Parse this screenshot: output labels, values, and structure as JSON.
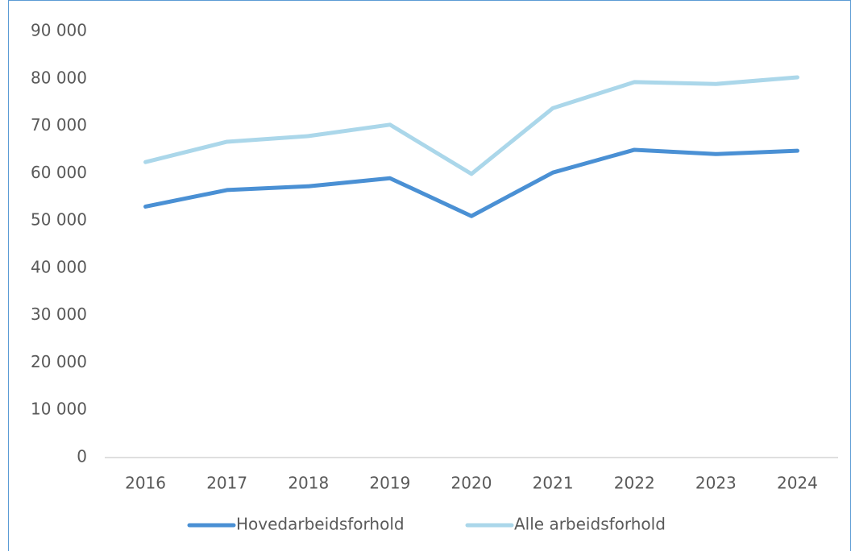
{
  "chart_data": {
    "type": "line",
    "categories": [
      "2016",
      "2017",
      "2018",
      "2019",
      "2020",
      "2021",
      "2022",
      "2023",
      "2024"
    ],
    "series": [
      {
        "name": "Hovedarbeidsforhold",
        "color": "#4a90d4",
        "values": [
          53000,
          56500,
          57300,
          59000,
          51000,
          60200,
          65000,
          64100,
          64800
        ]
      },
      {
        "name": "Alle arbeidsforhold",
        "color": "#abd7ea",
        "values": [
          62400,
          66700,
          67900,
          70300,
          59900,
          73800,
          79300,
          78900,
          80300
        ]
      }
    ],
    "ylim": [
      0,
      90000
    ],
    "yticks": [
      0,
      {
        "value": 10000,
        "label": "10 000"
      },
      {
        "value": 20000,
        "label": "20 000"
      },
      {
        "value": 30000,
        "label": "30 000"
      },
      {
        "value": 40000,
        "label": "40 000"
      },
      {
        "value": 50000,
        "label": "50 000"
      },
      {
        "value": 60000,
        "label": "60 000"
      },
      {
        "value": 70000,
        "label": "70 000"
      },
      {
        "value": 80000,
        "label": "80 000"
      },
      {
        "value": 90000,
        "label": "90 000"
      }
    ],
    "grid": false,
    "legend": "bottom"
  }
}
